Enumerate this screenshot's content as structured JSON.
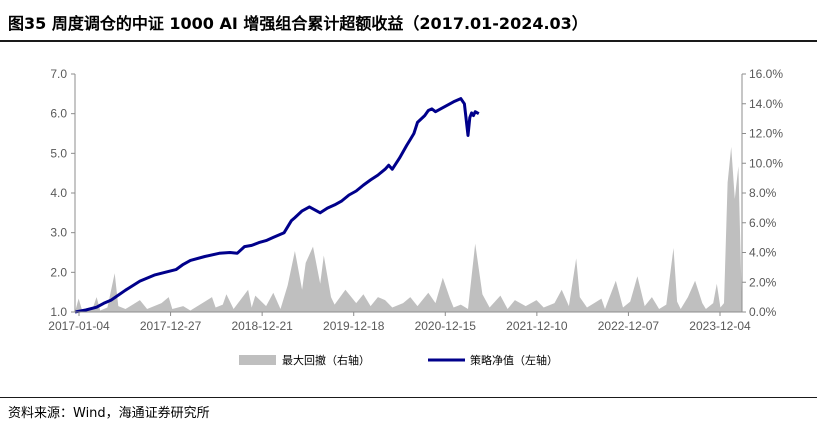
{
  "title": "图35 周度调仓的中证 1000 AI 增强组合累计超额收益（2017.01-2024.03）",
  "source": "资料来源：Wind，海通证券研究所",
  "colors": {
    "strategy": "#00008B",
    "drawdown": "#BFBFBF",
    "axis": "#8C8C8C"
  },
  "chart_data": {
    "type": "line+area",
    "title": "",
    "x_tick_labels": [
      "2017-01-04",
      "2017-12-27",
      "2018-12-21",
      "2019-12-18",
      "2020-12-15",
      "2021-12-10",
      "2022-12-07",
      "2023-12-04"
    ],
    "left_axis": {
      "ylim": [
        1.0,
        7.0
      ],
      "ticks": [
        "1.0",
        "2.0",
        "3.0",
        "4.0",
        "5.0",
        "6.0",
        "7.0"
      ]
    },
    "right_axis": {
      "ylim": [
        0.0,
        16.0
      ],
      "ticks": [
        "0.0%",
        "2.0%",
        "4.0%",
        "6.0%",
        "8.0%",
        "10.0%",
        "12.0%",
        "14.0%",
        "16.0%"
      ]
    },
    "legend": {
      "position": "bottom",
      "items": [
        "最大回撤（右轴）",
        "策略净值（左轴）"
      ]
    },
    "grid": false,
    "series": [
      {
        "name": "策略净值（左轴）",
        "kind": "line",
        "axis": "left",
        "points": [
          [
            0.0,
            1.0
          ],
          [
            0.03,
            1.05
          ],
          [
            0.06,
            1.12
          ],
          [
            0.08,
            1.22
          ],
          [
            0.1,
            1.3
          ],
          [
            0.14,
            1.55
          ],
          [
            0.18,
            1.78
          ],
          [
            0.22,
            1.93
          ],
          [
            0.25,
            2.0
          ],
          [
            0.28,
            2.07
          ],
          [
            0.3,
            2.2
          ],
          [
            0.32,
            2.3
          ],
          [
            0.36,
            2.4
          ],
          [
            0.4,
            2.48
          ],
          [
            0.43,
            2.5
          ],
          [
            0.45,
            2.48
          ],
          [
            0.47,
            2.65
          ],
          [
            0.49,
            2.68
          ],
          [
            0.51,
            2.75
          ],
          [
            0.53,
            2.8
          ],
          [
            0.55,
            2.88
          ],
          [
            0.58,
            3.0
          ],
          [
            0.6,
            3.3
          ],
          [
            0.61,
            3.38
          ],
          [
            0.63,
            3.55
          ],
          [
            0.65,
            3.65
          ],
          [
            0.68,
            3.5
          ],
          [
            0.7,
            3.62
          ],
          [
            0.72,
            3.7
          ],
          [
            0.74,
            3.8
          ],
          [
            0.76,
            3.95
          ],
          [
            0.78,
            4.05
          ],
          [
            0.8,
            4.2
          ],
          [
            0.82,
            4.33
          ],
          [
            0.84,
            4.45
          ],
          [
            0.86,
            4.6
          ],
          [
            0.87,
            4.7
          ],
          [
            0.88,
            4.6
          ],
          [
            0.9,
            4.88
          ],
          [
            0.92,
            5.2
          ],
          [
            0.93,
            5.35
          ],
          [
            0.94,
            5.5
          ],
          [
            0.95,
            5.78
          ],
          [
            0.97,
            5.95
          ],
          [
            0.98,
            6.08
          ],
          [
            0.99,
            6.12
          ],
          [
            1.0,
            6.05
          ],
          [
            1.02,
            6.15
          ],
          [
            1.05,
            6.3
          ],
          [
            1.07,
            6.38
          ],
          [
            1.08,
            6.25
          ],
          [
            1.09,
            5.45
          ],
          [
            1.095,
            5.9
          ],
          [
            1.1,
            6.02
          ],
          [
            1.105,
            5.95
          ],
          [
            1.11,
            6.05
          ],
          [
            1.12,
            6.0
          ]
        ]
      },
      {
        "name": "最大回撤（右轴）",
        "kind": "area",
        "axis": "right",
        "points": [
          [
            0.0,
            0.0
          ],
          [
            0.01,
            0.9
          ],
          [
            0.02,
            0.1
          ],
          [
            0.05,
            0.3
          ],
          [
            0.06,
            1.0
          ],
          [
            0.07,
            0.1
          ],
          [
            0.09,
            0.3
          ],
          [
            0.11,
            2.6
          ],
          [
            0.12,
            0.4
          ],
          [
            0.14,
            0.2
          ],
          [
            0.16,
            0.5
          ],
          [
            0.18,
            0.8
          ],
          [
            0.2,
            0.2
          ],
          [
            0.24,
            0.6
          ],
          [
            0.26,
            1.0
          ],
          [
            0.27,
            0.2
          ],
          [
            0.3,
            0.4
          ],
          [
            0.32,
            0.1
          ],
          [
            0.36,
            0.7
          ],
          [
            0.38,
            1.0
          ],
          [
            0.39,
            0.3
          ],
          [
            0.41,
            0.5
          ],
          [
            0.42,
            1.2
          ],
          [
            0.44,
            0.2
          ],
          [
            0.48,
            1.5
          ],
          [
            0.49,
            0.3
          ],
          [
            0.5,
            1.1
          ],
          [
            0.53,
            0.4
          ],
          [
            0.55,
            1.3
          ],
          [
            0.57,
            0.2
          ],
          [
            0.59,
            1.8
          ],
          [
            0.61,
            4.1
          ],
          [
            0.63,
            1.5
          ],
          [
            0.64,
            3.3
          ],
          [
            0.66,
            4.4
          ],
          [
            0.68,
            1.9
          ],
          [
            0.69,
            3.8
          ],
          [
            0.71,
            1.0
          ],
          [
            0.72,
            0.5
          ],
          [
            0.75,
            1.5
          ],
          [
            0.78,
            0.6
          ],
          [
            0.8,
            1.2
          ],
          [
            0.82,
            0.4
          ],
          [
            0.84,
            1.0
          ],
          [
            0.86,
            0.8
          ],
          [
            0.88,
            0.3
          ],
          [
            0.91,
            0.6
          ],
          [
            0.93,
            1.0
          ],
          [
            0.95,
            0.4
          ],
          [
            0.98,
            1.3
          ],
          [
            1.0,
            0.6
          ],
          [
            1.02,
            2.3
          ],
          [
            1.04,
            0.9
          ],
          [
            1.05,
            0.3
          ],
          [
            1.07,
            0.5
          ],
          [
            1.09,
            0.2
          ],
          [
            1.11,
            4.6
          ],
          [
            1.13,
            1.2
          ],
          [
            1.15,
            0.3
          ],
          [
            1.18,
            1.1
          ],
          [
            1.2,
            0.2
          ],
          [
            1.22,
            0.8
          ],
          [
            1.25,
            0.4
          ],
          [
            1.28,
            0.8
          ],
          [
            1.3,
            0.3
          ],
          [
            1.33,
            0.6
          ],
          [
            1.35,
            1.5
          ],
          [
            1.37,
            0.4
          ],
          [
            1.39,
            3.6
          ],
          [
            1.4,
            1.0
          ],
          [
            1.42,
            0.3
          ],
          [
            1.44,
            0.6
          ],
          [
            1.46,
            0.9
          ],
          [
            1.47,
            0.2
          ],
          [
            1.5,
            2.1
          ],
          [
            1.52,
            0.3
          ],
          [
            1.54,
            0.7
          ],
          [
            1.56,
            2.4
          ],
          [
            1.58,
            0.4
          ],
          [
            1.6,
            1.0
          ],
          [
            1.62,
            0.2
          ],
          [
            1.64,
            0.5
          ],
          [
            1.66,
            4.3
          ],
          [
            1.67,
            0.7
          ],
          [
            1.68,
            0.2
          ],
          [
            1.7,
            1.0
          ],
          [
            1.72,
            2.1
          ],
          [
            1.74,
            0.6
          ],
          [
            1.75,
            0.2
          ],
          [
            1.77,
            0.6
          ],
          [
            1.78,
            1.9
          ],
          [
            1.79,
            0.3
          ],
          [
            1.8,
            0.6
          ],
          [
            1.81,
            8.7
          ],
          [
            1.82,
            11.1
          ],
          [
            1.83,
            7.6
          ],
          [
            1.84,
            9.8
          ],
          [
            1.85,
            0.0
          ]
        ]
      }
    ]
  }
}
